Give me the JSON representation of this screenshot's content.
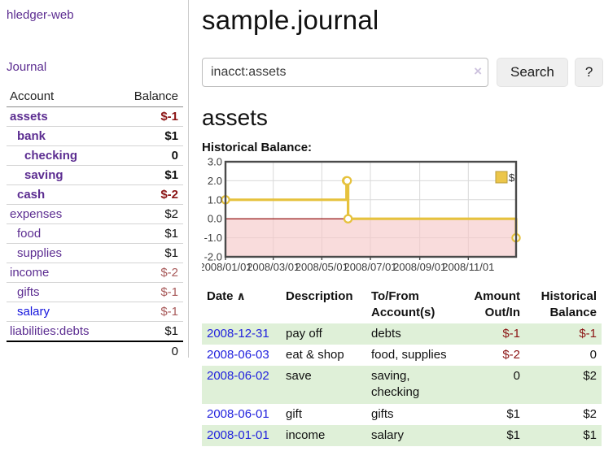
{
  "app": {
    "brand": "hledger-web",
    "nav_journal": "Journal"
  },
  "sidebar": {
    "table_headers": {
      "account": "Account",
      "balance": "Balance"
    },
    "accounts": [
      {
        "name": "assets",
        "indent": 1,
        "bold": true,
        "balance": "$-1",
        "negative": true,
        "link_color": "purple"
      },
      {
        "name": "bank",
        "indent": 2,
        "bold": true,
        "balance": "$1",
        "negative": false,
        "link_color": "purple"
      },
      {
        "name": "checking",
        "indent": 3,
        "bold": true,
        "balance": "0",
        "negative": false,
        "link_color": "purple"
      },
      {
        "name": "saving",
        "indent": 3,
        "bold": true,
        "balance": "$1",
        "negative": false,
        "link_color": "purple"
      },
      {
        "name": "cash",
        "indent": 2,
        "bold": true,
        "balance": "$-2",
        "negative": true,
        "link_color": "purple"
      },
      {
        "name": "expenses",
        "indent": 1,
        "bold": false,
        "balance": "$2",
        "negative": false,
        "link_color": "purple"
      },
      {
        "name": "food",
        "indent": 2,
        "bold": false,
        "balance": "$1",
        "negative": false,
        "link_color": "purple"
      },
      {
        "name": "supplies",
        "indent": 2,
        "bold": false,
        "balance": "$1",
        "negative": false,
        "link_color": "purple"
      },
      {
        "name": "income",
        "indent": 1,
        "bold": false,
        "balance": "$-2",
        "negative": true,
        "link_color": "purple"
      },
      {
        "name": "gifts",
        "indent": 2,
        "bold": false,
        "balance": "$-1",
        "negative": true,
        "link_color": "purple"
      },
      {
        "name": "salary",
        "indent": 2,
        "bold": false,
        "balance": "$-1",
        "negative": true,
        "link_color": "blue"
      },
      {
        "name": "liabilities:debts",
        "indent": 1,
        "bold": false,
        "balance": "$1",
        "negative": false,
        "link_color": "purple"
      }
    ],
    "total": "0"
  },
  "header": {
    "title": "sample.journal"
  },
  "search": {
    "value": "inacct:assets",
    "clear_icon": "×",
    "button_label": "Search",
    "help_label": "?"
  },
  "account_page": {
    "heading": "assets",
    "chart_heading": "Historical Balance:"
  },
  "chart_data": {
    "type": "line",
    "step": true,
    "title": "Historical Balance:",
    "series": [
      {
        "name": "$",
        "x": [
          "2008-01-01",
          "2008-06-01",
          "2008-06-02",
          "2008-06-03",
          "2008-12-31"
        ],
        "y": [
          1,
          2,
          2,
          0,
          -1
        ]
      }
    ],
    "xrange": [
      "2008-01-01",
      "2008-12-31"
    ],
    "ylim": [
      -2,
      3
    ],
    "ytick_labels": [
      "3.0",
      "2.0",
      "1.0",
      "0.0",
      "-1.0",
      "-2.0"
    ],
    "yticks": [
      3,
      2,
      1,
      0,
      -1,
      -2
    ],
    "xticks": [
      "2008-01-01",
      "2008-03-01",
      "2008-05-01",
      "2008-07-01",
      "2008-09-01",
      "2008-11-01"
    ],
    "xtick_labels": [
      "2008/01/01",
      "2008/03/01",
      "2008/05/01",
      "2008/07/01",
      "2008/09/01",
      "2008/11/01"
    ],
    "legend": {
      "label": "$",
      "position": "top-right"
    },
    "grid": true,
    "colors": {
      "line": "#e6c23d",
      "marker_fill": "#ffffff",
      "legend_fill": "#ecc64a",
      "legend_border": "#b89b35",
      "negative_region": "#f5c6c6",
      "zero_line": "#8b0000",
      "border": "#4a4a4a",
      "gridline": "#d9d9d9",
      "tick_text": "#3c3c3c"
    }
  },
  "register": {
    "headers": [
      {
        "lines": [
          "Date"
        ],
        "align": "left",
        "sorted": true,
        "sort_icon": "∧"
      },
      {
        "lines": [
          "Description"
        ],
        "align": "left"
      },
      {
        "lines": [
          "To/From",
          "Account(s)"
        ],
        "align": "left"
      },
      {
        "lines": [
          "Amount",
          "Out/In"
        ],
        "align": "right"
      },
      {
        "lines": [
          "Historical",
          "Balance"
        ],
        "align": "right"
      }
    ],
    "rows": [
      {
        "date": "2008-12-31",
        "description": "pay off",
        "accounts": "debts",
        "amount": "$-1",
        "amount_negative": true,
        "balance": "$-1",
        "balance_negative": true,
        "stripe": true
      },
      {
        "date": "2008-06-03",
        "description": "eat & shop",
        "accounts": "food, supplies",
        "amount": "$-2",
        "amount_negative": true,
        "balance": "0",
        "balance_negative": false,
        "stripe": false
      },
      {
        "date": "2008-06-02",
        "description": "save",
        "accounts": "saving, checking",
        "amount": "0",
        "amount_negative": false,
        "balance": "$2",
        "balance_negative": false,
        "stripe": true
      },
      {
        "date": "2008-06-01",
        "description": "gift",
        "accounts": "gifts",
        "amount": "$1",
        "amount_negative": false,
        "balance": "$2",
        "balance_negative": false,
        "stripe": false
      },
      {
        "date": "2008-01-01",
        "description": "income",
        "accounts": "salary",
        "amount": "$1",
        "amount_negative": false,
        "balance": "$1",
        "balance_negative": false,
        "stripe": true
      }
    ]
  }
}
